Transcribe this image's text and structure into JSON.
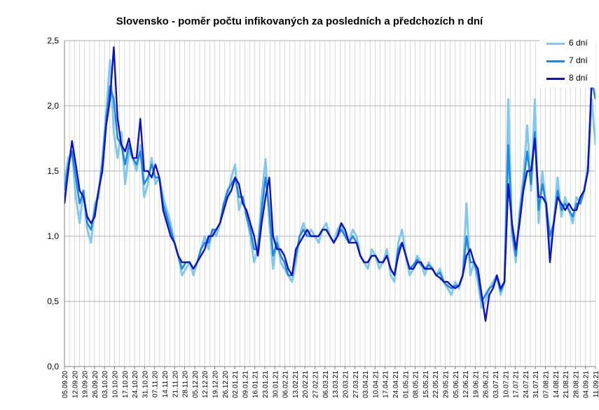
{
  "colors": {
    "series_6": "#80c8f0",
    "series_7": "#1e88e0",
    "series_8": "#1010c8",
    "grid": "#c8c8c8",
    "axis": "#808080"
  },
  "chart_data": {
    "type": "line",
    "title": "Slovensko - poměr počtu infikovaných za posledních a předchozích n dní",
    "xlabel": "",
    "ylabel": "",
    "ylim": [
      0,
      2.5
    ],
    "y_ticks": [
      "0,0",
      "0,5",
      "1,0",
      "1,5",
      "2,0",
      "2,5"
    ],
    "y_tick_values": [
      0,
      0.5,
      1,
      1.5,
      2,
      2.5
    ],
    "grid": true,
    "legend_position": "top-right",
    "x_ticks": [
      "05.09.20",
      "12.09.20",
      "19.09.20",
      "26.09.20",
      "03.10.20",
      "10.10.20",
      "17.10.20",
      "24.10.20",
      "31.10.20",
      "07.11.20",
      "14.11.20",
      "21.11.20",
      "28.11.20",
      "05.12.20",
      "12.12.20",
      "19.12.20",
      "26.12.20",
      "02.01.21",
      "09.01.21",
      "16.01.21",
      "23.01.21",
      "30.01.21",
      "06.02.21",
      "13.02.21",
      "20.02.21",
      "27.02.21",
      "06.03.21",
      "13.03.21",
      "20.03.21",
      "27.03.21",
      "03.04.21",
      "10.04.21",
      "17.04.21",
      "24.04.21",
      "01.05.21",
      "08.05.21",
      "15.05.21",
      "22.05.21",
      "29.05.21",
      "05.06.21",
      "12.06.21",
      "19.06.21",
      "26.06.21",
      "03.07.21",
      "10.07.21",
      "17.07.21",
      "24.07.21",
      "31.07.21",
      "07.08.21",
      "14.08.21",
      "21.08.21",
      "28.08.21",
      "04.09.21",
      "11.09.21"
    ],
    "x_start": "05.09.20",
    "x_interval_days": 7,
    "series": [
      {
        "name": "6 dní",
        "color": "#80c8f0",
        "values": [
          1.4,
          1.6,
          1.65,
          1.3,
          1.1,
          1.35,
          1.05,
          0.95,
          1.25,
          1.3,
          1.6,
          1.95,
          2.35,
          1.8,
          1.6,
          1.8,
          1.4,
          1.65,
          1.6,
          1.5,
          1.7,
          1.3,
          1.4,
          1.6,
          1.4,
          1.45,
          1.3,
          1.2,
          1.1,
          0.95,
          0.85,
          0.7,
          0.75,
          0.8,
          0.7,
          0.8,
          0.9,
          1.0,
          0.9,
          1.05,
          1.0,
          1.1,
          1.25,
          1.3,
          1.45,
          1.55,
          1.2,
          1.3,
          1.15,
          1.0,
          0.8,
          0.9,
          1.3,
          1.59,
          1.1,
          0.75,
          1.0,
          0.8,
          0.75,
          0.7,
          0.65,
          0.8,
          1.0,
          1.1,
          1.0,
          1.05,
          1.0,
          0.95,
          1.05,
          1.1,
          1.0,
          0.95,
          1.05,
          1.1,
          1.0,
          0.95,
          1.05,
          1.0,
          0.85,
          0.8,
          0.75,
          0.9,
          0.85,
          0.75,
          0.8,
          0.9,
          0.7,
          0.65,
          0.95,
          1.05,
          0.85,
          0.7,
          0.75,
          0.85,
          0.8,
          0.7,
          0.8,
          0.75,
          0.7,
          0.75,
          0.65,
          0.6,
          0.55,
          0.65,
          0.6,
          0.7,
          1.25,
          0.7,
          0.8,
          0.65,
          0.45,
          0.5,
          0.6,
          0.65,
          0.7,
          0.55,
          0.65,
          2.05,
          1.0,
          0.8,
          1.2,
          1.45,
          1.85,
          1.35,
          2.05,
          1.1,
          1.5,
          1.2,
          0.9,
          1.1,
          1.45,
          1.15,
          1.3,
          1.2,
          1.1,
          1.3,
          1.25,
          1.35,
          1.55,
          2.05,
          1.7
        ]
      },
      {
        "name": "7 dní",
        "color": "#1e88e0",
        "values": [
          1.35,
          1.55,
          1.65,
          1.45,
          1.25,
          1.35,
          1.1,
          1.05,
          1.2,
          1.35,
          1.55,
          1.9,
          2.15,
          2.05,
          1.75,
          1.7,
          1.55,
          1.7,
          1.6,
          1.55,
          1.65,
          1.4,
          1.45,
          1.55,
          1.45,
          1.45,
          1.25,
          1.15,
          1.05,
          0.95,
          0.85,
          0.75,
          0.8,
          0.8,
          0.75,
          0.8,
          0.9,
          0.95,
          0.95,
          1.05,
          1.05,
          1.1,
          1.25,
          1.35,
          1.4,
          1.45,
          1.3,
          1.3,
          1.15,
          1.05,
          0.9,
          0.9,
          1.2,
          1.45,
          1.2,
          0.85,
          0.95,
          0.85,
          0.8,
          0.7,
          0.7,
          0.85,
          1.0,
          1.05,
          1.0,
          1.0,
          1.0,
          1.0,
          1.05,
          1.05,
          1.0,
          0.95,
          1.0,
          1.05,
          1.0,
          0.95,
          1.0,
          0.95,
          0.85,
          0.8,
          0.8,
          0.85,
          0.85,
          0.8,
          0.8,
          0.85,
          0.75,
          0.7,
          0.9,
          0.95,
          0.85,
          0.75,
          0.78,
          0.82,
          0.78,
          0.75,
          0.78,
          0.75,
          0.7,
          0.72,
          0.65,
          0.62,
          0.6,
          0.62,
          0.62,
          0.7,
          1.0,
          0.8,
          0.8,
          0.7,
          0.5,
          0.55,
          0.6,
          0.62,
          0.68,
          0.58,
          0.65,
          1.7,
          1.05,
          0.85,
          1.15,
          1.4,
          1.65,
          1.4,
          1.8,
          1.2,
          1.4,
          1.25,
          1.0,
          1.1,
          1.35,
          1.2,
          1.25,
          1.2,
          1.15,
          1.25,
          1.25,
          1.35,
          1.5,
          2.2,
          2.05
        ]
      },
      {
        "name": "8 dní",
        "color": "#1010c8",
        "values": [
          1.25,
          1.5,
          1.73,
          1.55,
          1.35,
          1.3,
          1.15,
          1.1,
          1.15,
          1.35,
          1.5,
          1.85,
          2.05,
          2.45,
          1.9,
          1.7,
          1.65,
          1.75,
          1.6,
          1.6,
          1.9,
          1.5,
          1.5,
          1.45,
          1.55,
          1.45,
          1.2,
          1.1,
          1.0,
          0.95,
          0.85,
          0.8,
          0.8,
          0.8,
          0.75,
          0.8,
          0.85,
          0.9,
          1.0,
          1.0,
          1.05,
          1.1,
          1.2,
          1.3,
          1.35,
          1.45,
          1.4,
          1.25,
          1.2,
          1.1,
          1.0,
          0.85,
          1.1,
          1.3,
          1.45,
          1.0,
          0.9,
          0.9,
          0.85,
          0.75,
          0.7,
          0.9,
          0.95,
          1.0,
          1.05,
          1.0,
          1.0,
          1.0,
          1.05,
          1.05,
          1.0,
          0.95,
          1.0,
          1.1,
          1.05,
          0.95,
          0.95,
          0.95,
          0.85,
          0.8,
          0.8,
          0.85,
          0.85,
          0.8,
          0.8,
          0.85,
          0.75,
          0.7,
          0.85,
          0.95,
          0.85,
          0.75,
          0.75,
          0.8,
          0.8,
          0.75,
          0.75,
          0.75,
          0.7,
          0.68,
          0.65,
          0.65,
          0.62,
          0.6,
          0.62,
          0.7,
          0.85,
          0.9,
          0.8,
          0.75,
          0.55,
          0.35,
          0.55,
          0.6,
          0.7,
          0.6,
          0.65,
          1.4,
          1.1,
          0.9,
          1.1,
          1.35,
          1.5,
          1.5,
          1.75,
          1.3,
          1.3,
          1.25,
          0.8,
          1.1,
          1.3,
          1.25,
          1.2,
          1.25,
          1.2,
          1.2,
          1.3,
          1.35,
          1.5,
          2.2,
          2.4
        ]
      }
    ]
  }
}
